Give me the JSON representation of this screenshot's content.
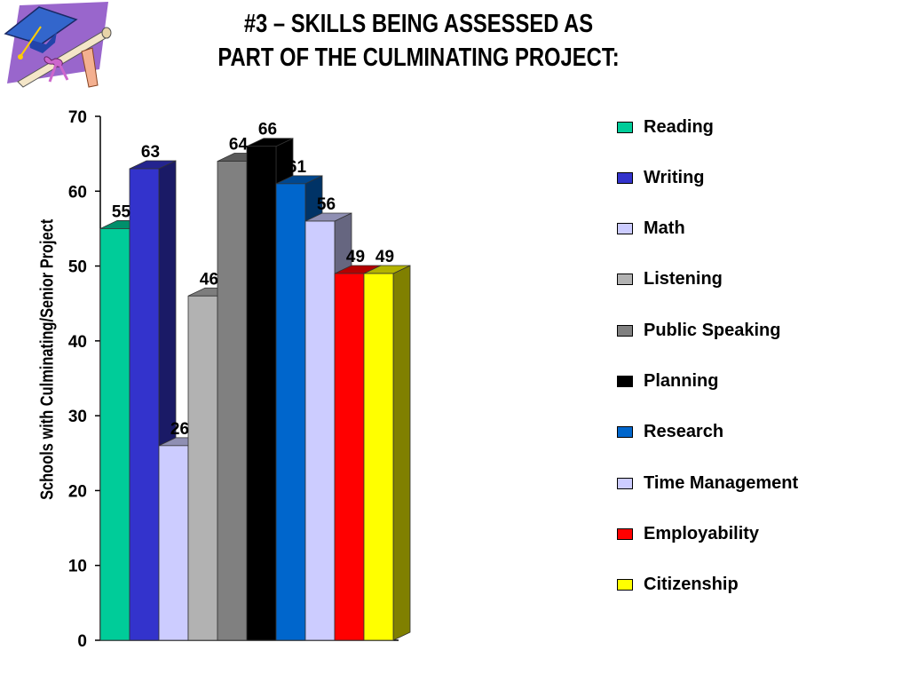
{
  "title": {
    "line1": "#3 – SKILLS BEING ASSESSED AS",
    "line2": "PART OF THE CULMINATING PROJECT:"
  },
  "clipart": {
    "icon": "graduation-cap-and-diploma-icon"
  },
  "chart_data": {
    "type": "bar",
    "style": "3d-clustered-column",
    "ylabel": "Schools with Culminating/Senior Project",
    "xlabel": "",
    "ylim": [
      0,
      70
    ],
    "yticks": [
      0,
      10,
      20,
      30,
      40,
      50,
      60,
      70
    ],
    "grid": false,
    "legend_position": "right",
    "series": [
      {
        "name": "Reading",
        "value": 55,
        "label": "55",
        "color": "#00CC99"
      },
      {
        "name": "Writing",
        "value": 63,
        "label": "63",
        "color": "#3333CC"
      },
      {
        "name": "Math",
        "value": 26,
        "label": "26",
        "color": "#CCCCFF"
      },
      {
        "name": "Listening",
        "value": 46,
        "label": "46",
        "color": "#B2B2B2"
      },
      {
        "name": "Public Speaking",
        "value": 64,
        "label": "64",
        "color": "#808080"
      },
      {
        "name": "Planning",
        "value": 66,
        "label": "66",
        "color": "#000000"
      },
      {
        "name": "Research",
        "value": 61,
        "label": "61",
        "color": "#0066CC"
      },
      {
        "name": "Time Management",
        "value": 56,
        "label": "56",
        "color": "#CCCCFF"
      },
      {
        "name": "Employability",
        "value": 49,
        "label": "49",
        "color": "#FF0000"
      },
      {
        "name": "Citizenship",
        "value": 49,
        "label": "49",
        "color": "#FFFF00"
      }
    ]
  }
}
